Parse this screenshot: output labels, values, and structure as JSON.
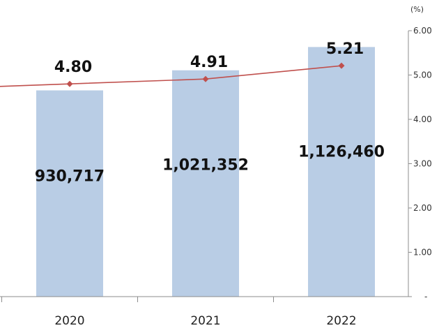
{
  "chart_data": {
    "type": "bar",
    "categories": [
      "2020",
      "2021",
      "2022"
    ],
    "series": [
      {
        "type": "bar",
        "values": [
          930717,
          1021352,
          1126460
        ],
        "labels": [
          "930,717",
          "1,021,352",
          "1,126,460"
        ],
        "color": "#b9cde5"
      },
      {
        "type": "line",
        "values": [
          4.8,
          4.91,
          5.21
        ],
        "labels": [
          "4.80",
          "4.91",
          "5.21"
        ],
        "color": "#c0504d",
        "axis": "right"
      }
    ],
    "right_axis": {
      "unit": "(%)",
      "ticks": [
        "-",
        "1.00",
        "2.00",
        "3.00",
        "4.00",
        "5.00",
        "6.00"
      ],
      "ylim": [
        0,
        6
      ]
    },
    "left_axis_ylim": [
      0,
      1200000
    ],
    "grid": false,
    "legend": "none"
  }
}
